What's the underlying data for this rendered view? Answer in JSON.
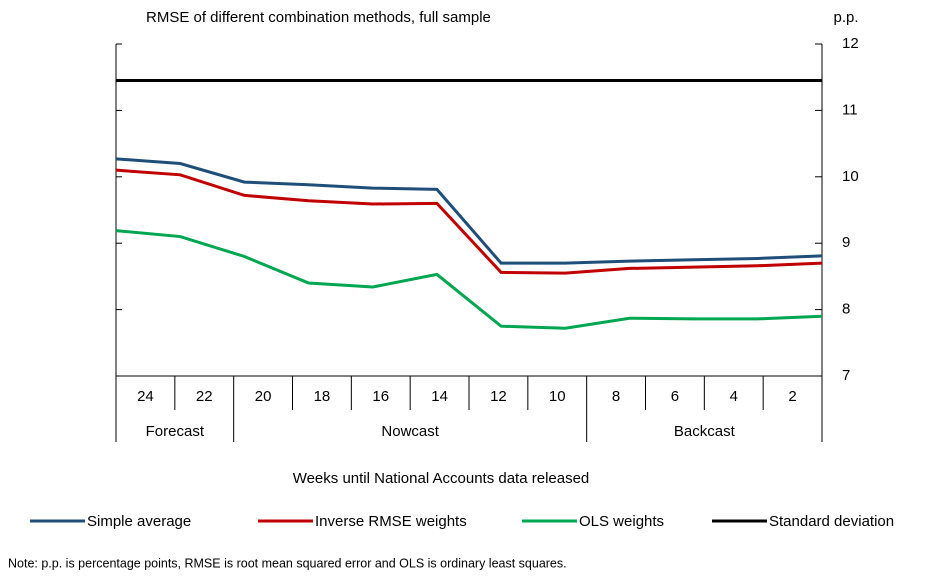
{
  "chart_data": {
    "type": "line",
    "title": "RMSE of different combination methods, full sample",
    "y_unit": "p.p.",
    "x_label": "Weeks until National Accounts data released",
    "categories": [
      "24",
      "22",
      "20",
      "18",
      "16",
      "14",
      "12",
      "10",
      "8",
      "6",
      "4",
      "2"
    ],
    "category_groups": [
      "Forecast",
      "Forecast",
      "Nowcast",
      "Nowcast",
      "Nowcast",
      "Nowcast",
      "Nowcast",
      "Nowcast",
      "Backcast",
      "Backcast",
      "Backcast",
      "Backcast"
    ],
    "series": [
      {
        "name": "Simple average",
        "color": "#1f4e79",
        "values": [
          10.27,
          10.2,
          9.92,
          9.88,
          9.83,
          9.81,
          8.7,
          8.7,
          8.73,
          8.75,
          8.77,
          8.81
        ]
      },
      {
        "name": "Inverse RMSE weights",
        "color": "#c00000",
        "values": [
          10.1,
          10.03,
          9.72,
          9.64,
          9.59,
          9.6,
          8.56,
          8.55,
          8.62,
          8.64,
          8.66,
          8.7
        ]
      },
      {
        "name": "OLS weights",
        "color": "#00a650",
        "values": [
          9.19,
          9.1,
          8.8,
          8.4,
          8.34,
          8.53,
          7.75,
          7.72,
          7.87,
          7.86,
          7.86,
          7.9
        ]
      },
      {
        "name": "Standard deviation",
        "color": "#000000",
        "values": [
          11.45,
          11.45,
          11.45,
          11.45,
          11.45,
          11.45,
          11.45,
          11.45,
          11.45,
          11.45,
          11.45,
          11.45
        ]
      }
    ],
    "ylim": [
      7,
      12
    ],
    "yticks": [
      7,
      8,
      9,
      10,
      11,
      12
    ],
    "note": "Note: p.p. is percentage points, RMSE is root mean squared error and OLS is ordinary least squares."
  }
}
